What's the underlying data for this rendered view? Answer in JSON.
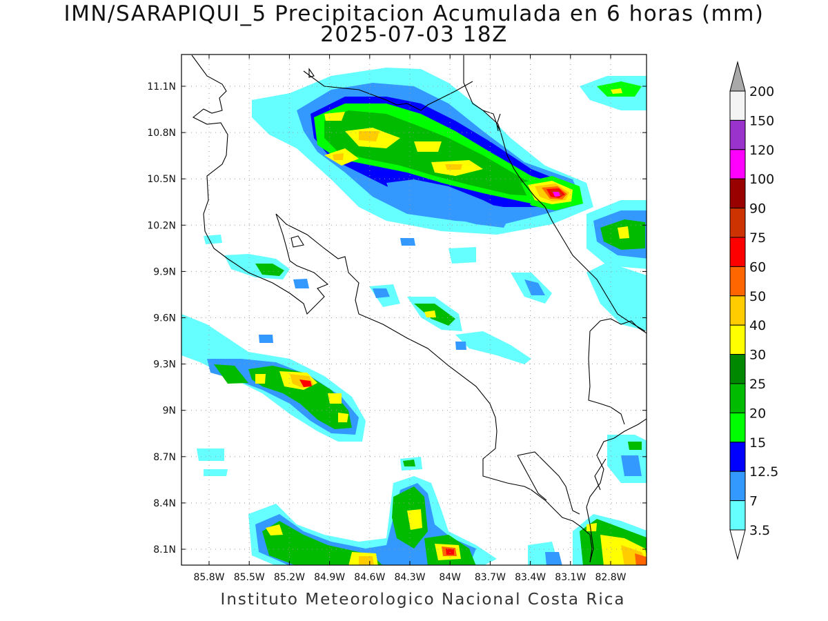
{
  "title": {
    "line1": "IMN/SARAPIQUI_5 Precipitacion Acumulada en 6 horas (mm)",
    "line2": "2025-07-03 18Z"
  },
  "footer": "Instituto Meteorologico Nacional Costa Rica",
  "axes": {
    "lat_ticks": [
      "11.1N",
      "10.8N",
      "10.5N",
      "10.2N",
      "9.9N",
      "9.6N",
      "9.3N",
      "9N",
      "8.7N",
      "8.4N",
      "8.1N"
    ],
    "lon_ticks": [
      "85.8W",
      "85.5W",
      "85.2W",
      "84.9W",
      "84.6W",
      "84.3W",
      "84W",
      "83.7W",
      "83.4W",
      "83.1W",
      "82.8W"
    ],
    "grid": "dotted"
  },
  "colorbar": {
    "labels": [
      "200",
      "150",
      "120",
      "100",
      "90",
      "75",
      "60",
      "50",
      "40",
      "30",
      "25",
      "20",
      "15",
      "12.5",
      "7",
      "3.5"
    ],
    "colors": [
      "#a9a9a9",
      "#f4f4f4",
      "#9933cc",
      "#ff00ff",
      "#990000",
      "#cc3300",
      "#ff0000",
      "#ff6600",
      "#ffcc00",
      "#ffff00",
      "#008800",
      "#00bb00",
      "#00ff00",
      "#0000ff",
      "#3399ff",
      "#66ffff",
      "#ffffff"
    ]
  }
}
